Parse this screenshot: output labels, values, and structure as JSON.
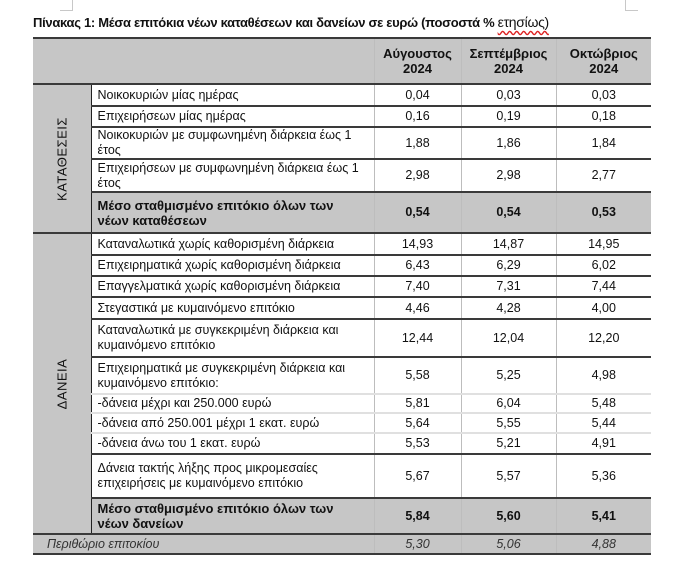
{
  "title": {
    "main": "Πίνακας 1: Μέσα επιτόκια νέων καταθέσεων και δανείων σε ευρώ (ποσοστά % ",
    "suffix": "ετησίως)"
  },
  "columns": [
    {
      "month": "Αύγουστος",
      "year": "2024"
    },
    {
      "month": "Σεπτέμβριος",
      "year": "2024"
    },
    {
      "month": "Οκτώβριος",
      "year": "2024"
    }
  ],
  "deposits": {
    "category": "ΚΑΤΑΘΕΣΕΙΣ",
    "rows": [
      {
        "label": "Νοικοκυριών μίας ημέρας",
        "values": [
          "0,04",
          "0,03",
          "0,03"
        ]
      },
      {
        "label": "Επιχειρήσεων μίας ημέρας",
        "values": [
          "0,16",
          "0,19",
          "0,18"
        ]
      },
      {
        "label": "Νοικοκυριών με συμφωνημένη διάρκεια έως 1 έτος",
        "values": [
          "1,88",
          "1,86",
          "1,84"
        ]
      },
      {
        "label": "Επιχειρήσεων με συμφωνημένη διάρκεια έως 1 έτος",
        "values": [
          "2,98",
          "2,98",
          "2,77"
        ]
      }
    ],
    "total": {
      "label": "Μέσο σταθμισμένο επιτόκιο όλων των νέων καταθέσεων",
      "values": [
        "0,54",
        "0,54",
        "0,53"
      ]
    }
  },
  "loans": {
    "category": "ΔΑΝΕΙΑ",
    "rows": [
      {
        "label": "Καταναλωτικά χωρίς καθορισμένη διάρκεια",
        "values": [
          "14,93",
          "14,87",
          "14,95"
        ]
      },
      {
        "label": "Επιχειρηματικά χωρίς καθορισμένη διάρκεια",
        "values": [
          "6,43",
          "6,29",
          "6,02"
        ]
      },
      {
        "label": "Επαγγελματικά χωρίς καθορισμένη διάρκεια",
        "values": [
          "7,40",
          "7,31",
          "7,44"
        ]
      },
      {
        "label": "Στεγαστικά με κυμαινόμενο επιτόκιο",
        "values": [
          "4,46",
          "4,28",
          "4,00"
        ]
      },
      {
        "label": "Καταναλωτικά με συγκεκριμένη διάρκεια και κυμαινόμενο επιτόκιο",
        "values": [
          "12,44",
          "12,04",
          "12,20"
        ]
      },
      {
        "label": "Επιχειρηματικά με συγκεκριμένη διάρκεια και κυμαινόμενο επιτόκιο:",
        "values": [
          "5,58",
          "5,25",
          "4,98"
        ]
      },
      {
        "label": "-δάνεια μέχρι και 250.000 ευρώ",
        "values": [
          "5,81",
          "6,04",
          "5,48"
        ]
      },
      {
        "label": "-δάνεια από 250.001 μέχρι 1 εκατ. ευρώ",
        "values": [
          "5,64",
          "5,55",
          "5,44"
        ]
      },
      {
        "label": "-δάνεια άνω του 1 εκατ. ευρώ",
        "values": [
          "5,53",
          "5,21",
          "4,91"
        ]
      },
      {
        "label": "Δάνεια τακτής λήξης προς μικρομεσαίες επιχειρήσεις με κυμαινόμενο επιτόκιο",
        "values": [
          "5,67",
          "5,57",
          "5,36"
        ]
      }
    ],
    "total": {
      "label": "Μέσο σταθμισμένο επιτόκιο όλων των νέων δανείων",
      "values": [
        "5,84",
        "5,60",
        "5,41"
      ]
    }
  },
  "margin": {
    "label": "Περιθώριο επιτοκίου",
    "values": [
      "5,30",
      "5,06",
      "4,88"
    ]
  }
}
